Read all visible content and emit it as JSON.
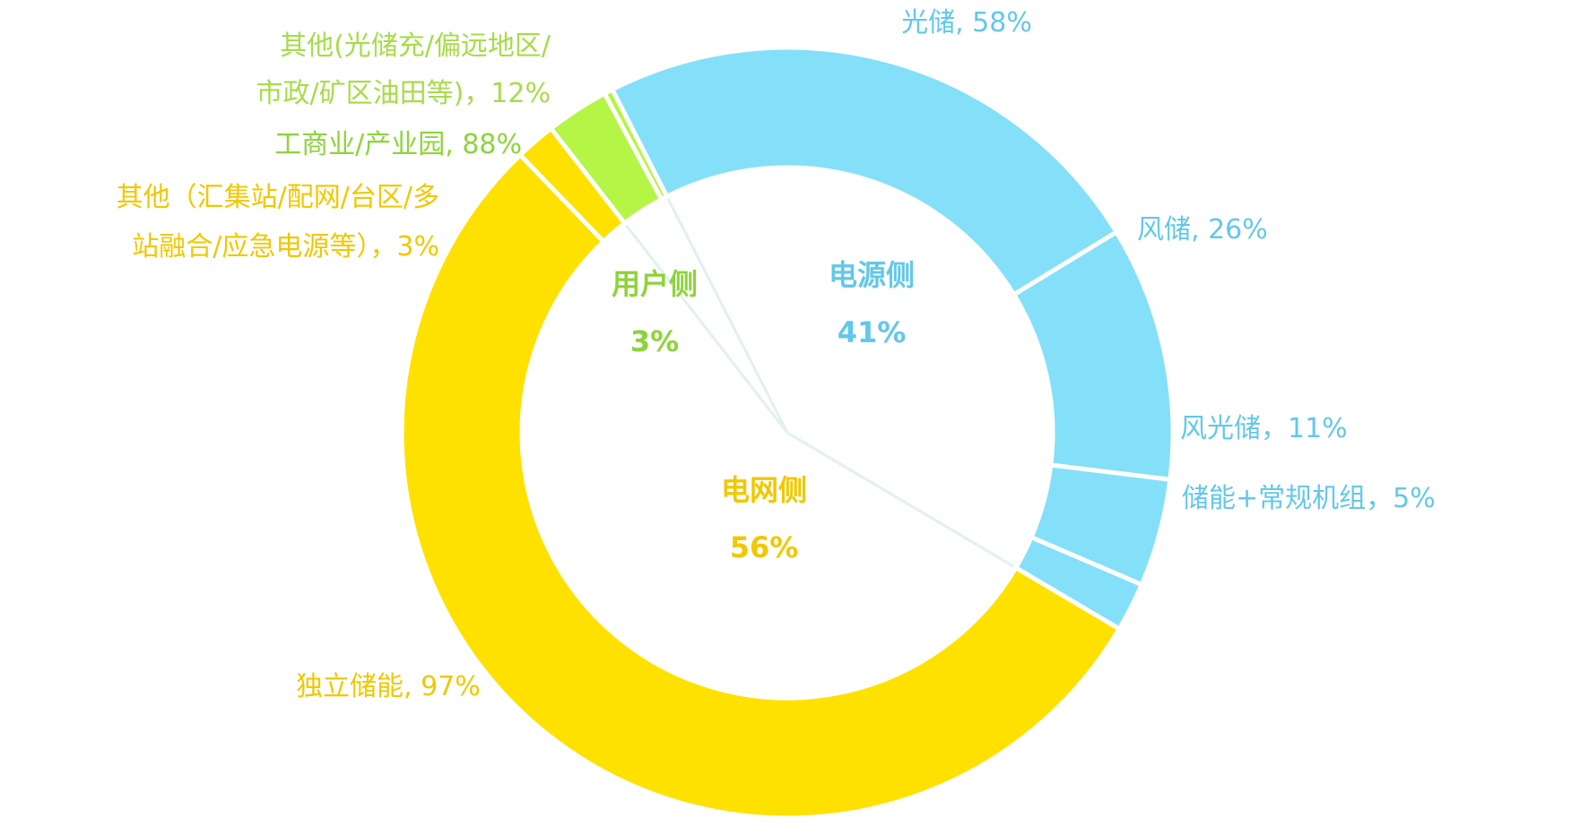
{
  "chart_data": {
    "type": "pie",
    "subtype": "nested-donut",
    "title": "",
    "colors": {
      "power_side": "#84E0F8",
      "grid_side": "#FFE100",
      "user_side": "#B5F545",
      "center_fill": "#FFFFFF",
      "power_text": "#62C8EA",
      "grid_text": "#F0C800",
      "user_text": "#8DD43A",
      "user_other_text": "#A6DC4A"
    },
    "inner_ring": [
      {
        "name": "电源侧",
        "value": 41,
        "label": "41%"
      },
      {
        "name": "电网侧",
        "value": 56,
        "label": "56%"
      },
      {
        "name": "用户侧",
        "value": 3,
        "label": "3%"
      }
    ],
    "outer_ring": [
      {
        "group": "电源侧",
        "name": "光储",
        "share_of_group": 58,
        "label": "光储, 58%"
      },
      {
        "group": "电源侧",
        "name": "风储",
        "share_of_group": 26,
        "label": "风储, 26%"
      },
      {
        "group": "电源侧",
        "name": "风光储",
        "share_of_group": 11,
        "label": "风光储，11%"
      },
      {
        "group": "电源侧",
        "name": "储能+常规机组",
        "share_of_group": 5,
        "label": "储能+常规机组，5%"
      },
      {
        "group": "电网侧",
        "name": "独立储能",
        "share_of_group": 97,
        "label": "独立储能, 97%"
      },
      {
        "group": "电网侧",
        "name": "其他（汇集站/配网/台区/多站融合/应急电源等）",
        "share_of_group": 3,
        "label_lines": [
          "其他（汇集站/配网/台区/多",
          "站融合/应急电源等），3%"
        ]
      },
      {
        "group": "用户侧",
        "name": "工商业/产业园",
        "share_of_group": 88,
        "label": "工商业/产业园, 88%"
      },
      {
        "group": "用户侧",
        "name": "其他(光储充/偏远地区/市政/矿区油田等)",
        "share_of_group": 12,
        "label_lines": [
          "其他(光储充/偏远地区/",
          "市政/矿区油田等)，12%"
        ]
      }
    ]
  }
}
